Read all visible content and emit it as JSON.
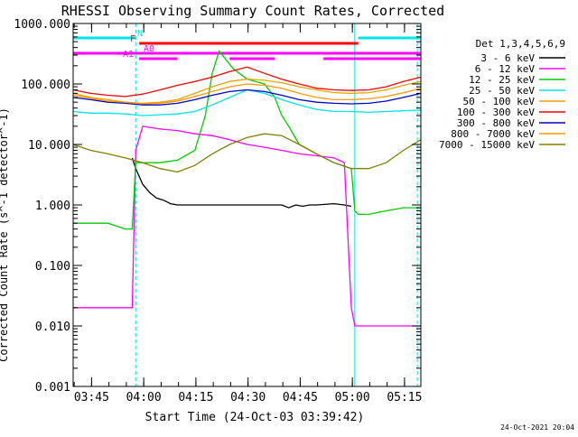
{
  "chart_data": {
    "type": "line",
    "title": "RHESSI Observing Summary Count Rates, Corrected",
    "xlabel": "Start Time (24-Oct-03 03:39:42)",
    "ylabel": "Corrected Count Rate (s^-1 detector^-1)",
    "yscale": "log",
    "ylim": [
      0.001,
      1000
    ],
    "xlim_minutes": [
      0,
      100
    ],
    "x_ticks": [
      {
        "label": "03:45",
        "value": 5.3
      },
      {
        "label": "04:00",
        "value": 20.3
      },
      {
        "label": "04:15",
        "value": 35.3
      },
      {
        "label": "04:30",
        "value": 50.3
      },
      {
        "label": "04:45",
        "value": 65.3
      },
      {
        "label": "05:00",
        "value": 80.3
      },
      {
        "label": "05:15",
        "value": 95.3
      }
    ],
    "y_ticks": [
      {
        "label": "1000.000",
        "value": 1000
      },
      {
        "label": "100.000",
        "value": 100
      },
      {
        "label": "10.000",
        "value": 10
      },
      {
        "label": "1.000",
        "value": 1
      },
      {
        "label": "0.100",
        "value": 0.1
      },
      {
        "label": "0.010",
        "value": 0.01
      },
      {
        "label": "0.001",
        "value": 0.001
      }
    ],
    "legend_title": "Det 1,3,4,5,6,9",
    "legend_position": "right",
    "series": [
      {
        "name": "3 - 6 keV",
        "color": "#000000",
        "x": [
          17,
          18,
          20,
          22,
          24,
          26,
          28,
          30,
          35,
          40,
          45,
          50,
          55,
          60,
          62,
          64,
          66,
          68,
          70,
          75,
          78,
          80
        ],
        "y": [
          6,
          4,
          2.2,
          1.6,
          1.3,
          1.2,
          1.05,
          1,
          1,
          1,
          1,
          1,
          1,
          1,
          0.9,
          1,
          0.95,
          1,
          1,
          1.05,
          1,
          0.95
        ]
      },
      {
        "name": "6 - 12 keV",
        "color": "#ff00ff",
        "x": [
          0,
          5,
          10,
          15,
          17,
          18,
          20,
          25,
          30,
          35,
          40,
          45,
          50,
          55,
          60,
          65,
          70,
          75,
          78,
          80,
          81,
          82,
          84,
          100
        ],
        "y": [
          0.02,
          0.02,
          0.02,
          0.02,
          0.02,
          8,
          20,
          18,
          17,
          15,
          14,
          12,
          10,
          9,
          8,
          7,
          6.5,
          6,
          5,
          0.02,
          0.01,
          0.01,
          0.01,
          0.01
        ]
      },
      {
        "name": "12 - 25 keV",
        "color": "#00cc00",
        "x": [
          0,
          5,
          10,
          15,
          17,
          18,
          20,
          25,
          30,
          35,
          38,
          40,
          42,
          44,
          46,
          50,
          55,
          58,
          60,
          62,
          65,
          70,
          75,
          80,
          81,
          82,
          85,
          90,
          95,
          100
        ],
        "y": [
          0.5,
          0.5,
          0.5,
          0.4,
          0.4,
          5,
          5,
          5,
          5.5,
          8,
          30,
          150,
          350,
          250,
          180,
          120,
          100,
          60,
          30,
          20,
          10,
          7,
          5,
          4,
          0.8,
          0.7,
          0.7,
          0.8,
          0.9,
          0.9
        ]
      },
      {
        "name": "25 - 50 keV",
        "color": "#00e5e5",
        "x": [
          0,
          5,
          10,
          15,
          20,
          25,
          30,
          35,
          40,
          45,
          50,
          55,
          60,
          65,
          70,
          75,
          80,
          85,
          90,
          95,
          100
        ],
        "y": [
          35,
          33,
          33,
          32,
          30,
          31,
          32,
          35,
          45,
          60,
          80,
          70,
          55,
          45,
          38,
          35,
          35,
          34,
          35,
          36,
          37
        ]
      },
      {
        "name": "50 - 100 keV",
        "color": "#e5a500",
        "x": [
          0,
          5,
          10,
          15,
          20,
          25,
          30,
          35,
          40,
          45,
          50,
          55,
          60,
          65,
          70,
          75,
          80,
          85,
          90,
          95,
          100
        ],
        "y": [
          70,
          60,
          55,
          50,
          48,
          50,
          55,
          70,
          90,
          110,
          120,
          115,
          105,
          90,
          80,
          72,
          70,
          72,
          80,
          95,
          110
        ]
      },
      {
        "name": "100 - 300 keV",
        "color": "#ff0000",
        "x": [
          0,
          5,
          10,
          15,
          20,
          25,
          30,
          35,
          40,
          45,
          50,
          55,
          60,
          65,
          70,
          75,
          80,
          85,
          90,
          95,
          100
        ],
        "y": [
          80,
          70,
          65,
          62,
          68,
          80,
          95,
          110,
          130,
          160,
          190,
          150,
          120,
          100,
          85,
          80,
          78,
          80,
          90,
          110,
          130
        ]
      },
      {
        "name": "300 - 800 keV",
        "color": "#0000cc",
        "x": [
          0,
          5,
          10,
          15,
          20,
          25,
          30,
          35,
          40,
          45,
          50,
          55,
          60,
          65,
          70,
          75,
          80,
          85,
          90,
          95,
          100
        ],
        "y": [
          60,
          55,
          50,
          48,
          45,
          45,
          48,
          55,
          65,
          75,
          80,
          75,
          65,
          55,
          50,
          48,
          47,
          48,
          52,
          60,
          70
        ]
      },
      {
        "name": "800 - 7000 keV",
        "color": "#ff9900",
        "x": [
          0,
          5,
          10,
          15,
          20,
          25,
          30,
          35,
          40,
          45,
          50,
          55,
          60,
          65,
          70,
          75,
          80,
          85,
          90,
          95,
          100
        ],
        "y": [
          65,
          58,
          52,
          50,
          47,
          48,
          52,
          62,
          75,
          90,
          100,
          95,
          85,
          70,
          60,
          55,
          55,
          57,
          62,
          72,
          85
        ]
      },
      {
        "name": "7000 - 15000 keV",
        "color": "#808000",
        "x": [
          0,
          5,
          10,
          15,
          20,
          25,
          30,
          35,
          40,
          45,
          50,
          55,
          60,
          65,
          70,
          75,
          80,
          85,
          90,
          95,
          100
        ],
        "y": [
          10,
          8,
          7,
          6,
          5,
          4,
          3.5,
          4.5,
          7,
          10,
          13,
          15,
          14,
          10,
          7,
          5,
          4,
          4,
          5,
          8,
          12
        ]
      }
    ],
    "flag_bars": [
      {
        "label": "N",
        "color": "#00e5e5",
        "ranges": [
          [
            0,
            18
          ],
          [
            82,
            100
          ]
        ]
      },
      {
        "label": "F",
        "color": "#ff0000",
        "ranges": [
          [
            19,
            82
          ]
        ]
      },
      {
        "label": "A0",
        "color": "#ff00ff",
        "ranges": [
          [
            0,
            100
          ]
        ]
      },
      {
        "label": "A1",
        "color": "#ff00ff",
        "ranges": [
          [
            19,
            30
          ],
          [
            45,
            58
          ],
          [
            72,
            100
          ]
        ]
      }
    ],
    "vlines_dashed": [
      18,
      99
    ],
    "vlines_solid": [
      0,
      81
    ],
    "footer_date": "24-Oct-2021 20:04"
  }
}
